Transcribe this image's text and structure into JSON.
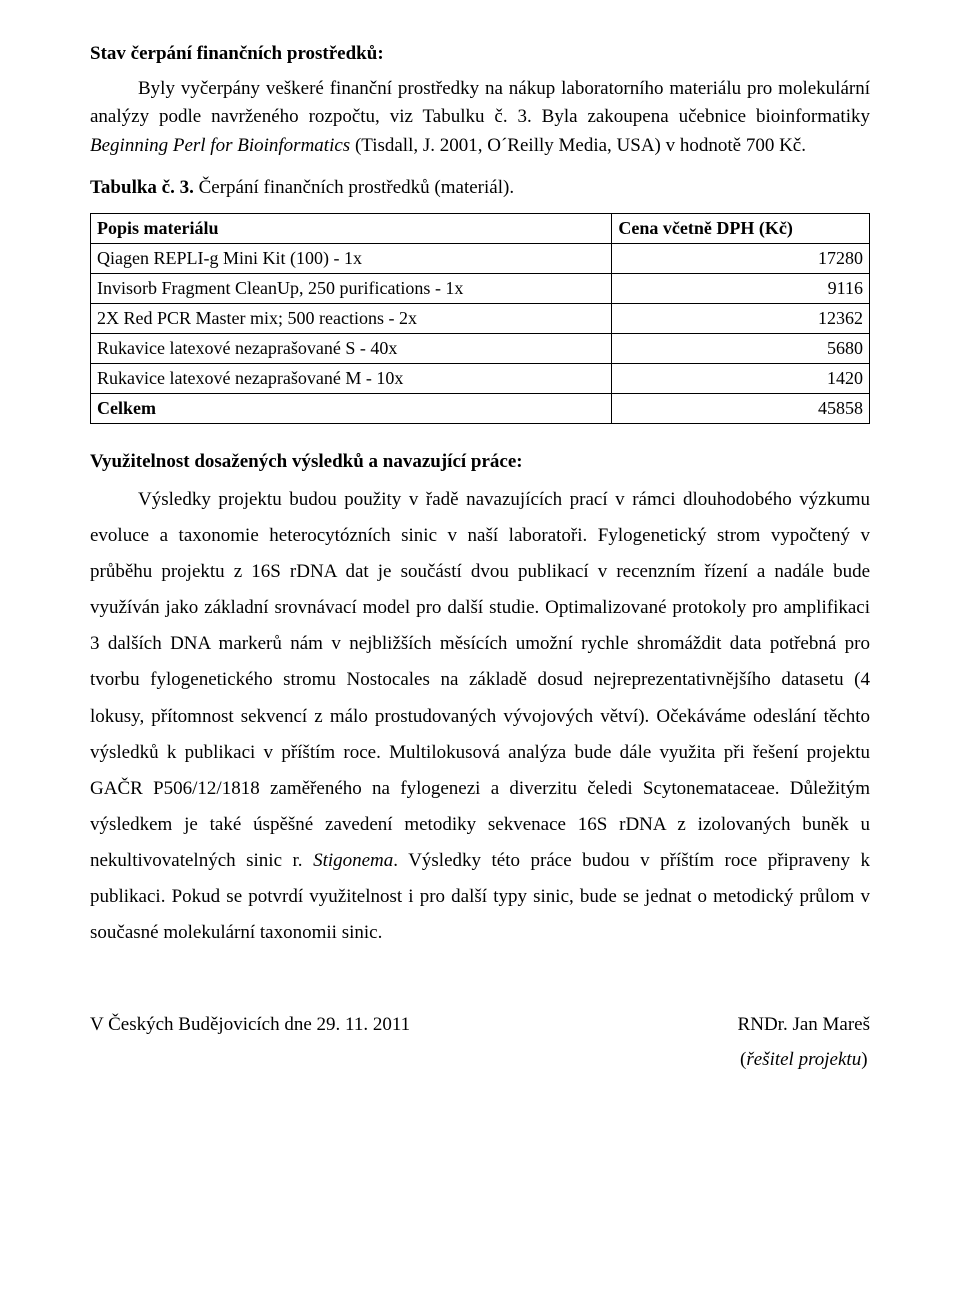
{
  "section1": {
    "title": "Stav čerpání finančních prostředků:",
    "p1a": "Byly vyčerpány veškeré finanční prostředky na nákup laboratorního materiálu pro molekulární analýzy podle navrženého rozpočtu, viz Tabulku č. 3.  Byla zakoupena učebnice bioinformatiky ",
    "p1b": "Beginning Perl for Bioinformatics",
    "p1c": " (Tisdall, J. 2001, O´Reilly Media, USA) v hodnotě 700 Kč."
  },
  "table": {
    "caption_bold": "Tabulka č. 3.",
    "caption_rest": " Čerpání finančních prostředků (materiál).",
    "columns": [
      "Popis materiálu",
      "Cena včetně DPH (Kč)"
    ],
    "rows": [
      [
        "Qiagen REPLI-g Mini Kit (100) - 1x",
        "17280"
      ],
      [
        "Invisorb Fragment CleanUp, 250 purifications - 1x",
        "9116"
      ],
      [
        "2X Red PCR Master mix; 500 reactions - 2x",
        "12362"
      ],
      [
        "Rukavice latexové nezaprašované S - 40x",
        "5680"
      ],
      [
        "Rukavice latexové nezaprašované M - 10x",
        "1420"
      ]
    ],
    "total_label": "Celkem",
    "total_value": "45858"
  },
  "section2": {
    "title": "Využitelnost dosažených výsledků a navazující práce:",
    "p_a": "Výsledky projektu budou použity v  řadě navazujících prací v rámci dlouhodobého výzkumu evoluce a taxonomie heterocytózních sinic v  naší laboratoři. Fylogenetický strom vypočtený v průběhu projektu z 16S rDNA dat je součástí dvou publikací v recenzním řízení a nadále bude využíván jako základní srovnávací model pro další studie. Optimalizované protokoly pro amplifikaci 3 dalších DNA markerů nám v nejbližších měsících umožní rychle shromáždit data potřebná pro tvorbu fylogenetického stromu Nostocales na základě dosud nejreprezentativnějšího datasetu (4 lokusy, přítomnost sekvencí z málo prostudovaných vývojových větví). Očekáváme odeslání těchto výsledků k publikaci v příštím roce. Multilokusová analýza bude dále využita při řešení projektu GAČR P506/12/1818 zaměřeného na fylogenezi a diverzitu čeledi Scytonemataceae. Důležitým výsledkem je také úspěšné zavedení metodiky sekvenace 16S rDNA z izolovaných buněk u nekultivovatelných sinic r. ",
    "p_b": "Stigonema",
    "p_c": ". Výsledky této práce budou v příštím roce připraveny k publikaci. Pokud se potvrdí využitelnost i pro další typy sinic, bude se jednat o metodický průlom v současné molekulární taxonomii sinic."
  },
  "footer": {
    "left": "V Českých Budějovicích dne 29. 11. 2011",
    "right": "RNDr. Jan Mareš",
    "resitel": "(řešitel projektu)"
  }
}
